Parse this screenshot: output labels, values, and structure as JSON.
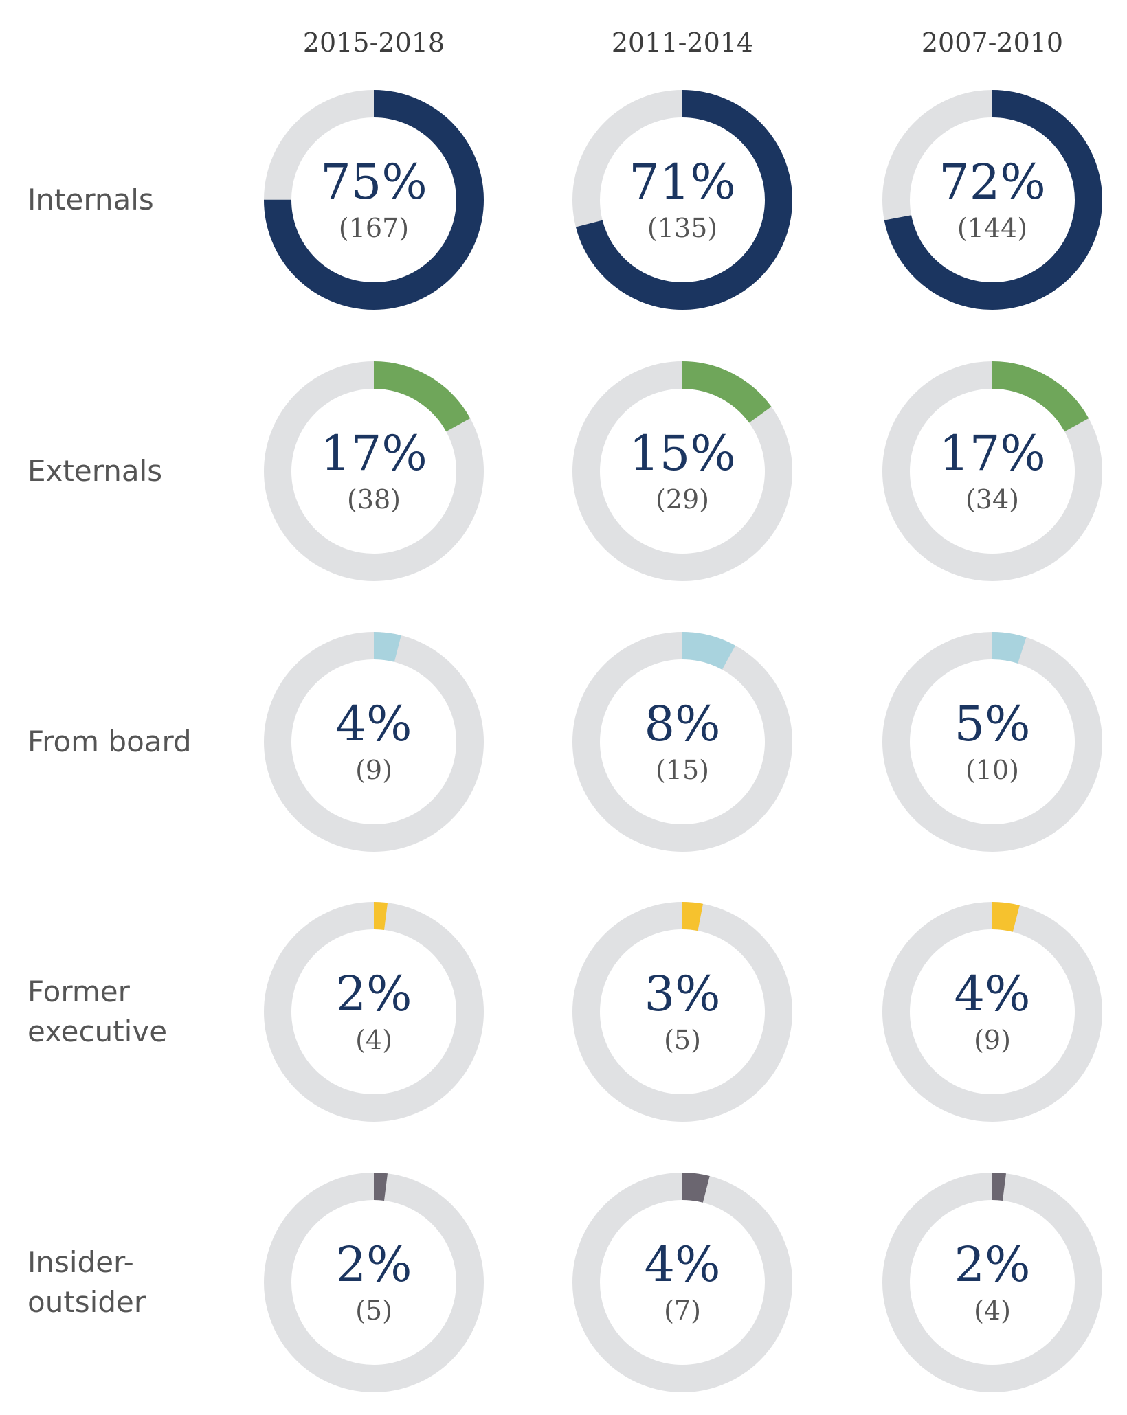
{
  "chart_data": {
    "type": "donut-grid",
    "columns": [
      "2015-2018",
      "2011-2014",
      "2007-2010"
    ],
    "track_color": "#e0e1e3",
    "rows": [
      {
        "label_lines": [
          "Internals"
        ],
        "color": "#1b3560",
        "cells": [
          {
            "value": 75,
            "pct_label": "75%",
            "count_label": "(167)"
          },
          {
            "value": 71,
            "pct_label": "71%",
            "count_label": "(135)"
          },
          {
            "value": 72,
            "pct_label": "72%",
            "count_label": "(144)"
          }
        ]
      },
      {
        "label_lines": [
          "Externals"
        ],
        "color": "#6fa65a",
        "cells": [
          {
            "value": 17,
            "pct_label": "17%",
            "count_label": "(38)"
          },
          {
            "value": 15,
            "pct_label": "15%",
            "count_label": "(29)"
          },
          {
            "value": 17,
            "pct_label": "17%",
            "count_label": "(34)"
          }
        ]
      },
      {
        "label_lines": [
          "From board"
        ],
        "color": "#a9d3de",
        "cells": [
          {
            "value": 4,
            "pct_label": "4%",
            "count_label": "(9)"
          },
          {
            "value": 8,
            "pct_label": "8%",
            "count_label": "(15)"
          },
          {
            "value": 5,
            "pct_label": "5%",
            "count_label": "(10)"
          }
        ]
      },
      {
        "label_lines": [
          "Former",
          "executive"
        ],
        "color": "#f6c22e",
        "cells": [
          {
            "value": 2,
            "pct_label": "2%",
            "count_label": "(4)"
          },
          {
            "value": 3,
            "pct_label": "3%",
            "count_label": "(5)"
          },
          {
            "value": 4,
            "pct_label": "4%",
            "count_label": "(9)"
          }
        ]
      },
      {
        "label_lines": [
          "Insider-",
          "outsider"
        ],
        "color": "#6b6670",
        "cells": [
          {
            "value": 2,
            "pct_label": "2%",
            "count_label": "(5)"
          },
          {
            "value": 4,
            "pct_label": "4%",
            "count_label": "(7)"
          },
          {
            "value": 2,
            "pct_label": "2%",
            "count_label": "(4)"
          }
        ]
      }
    ]
  }
}
